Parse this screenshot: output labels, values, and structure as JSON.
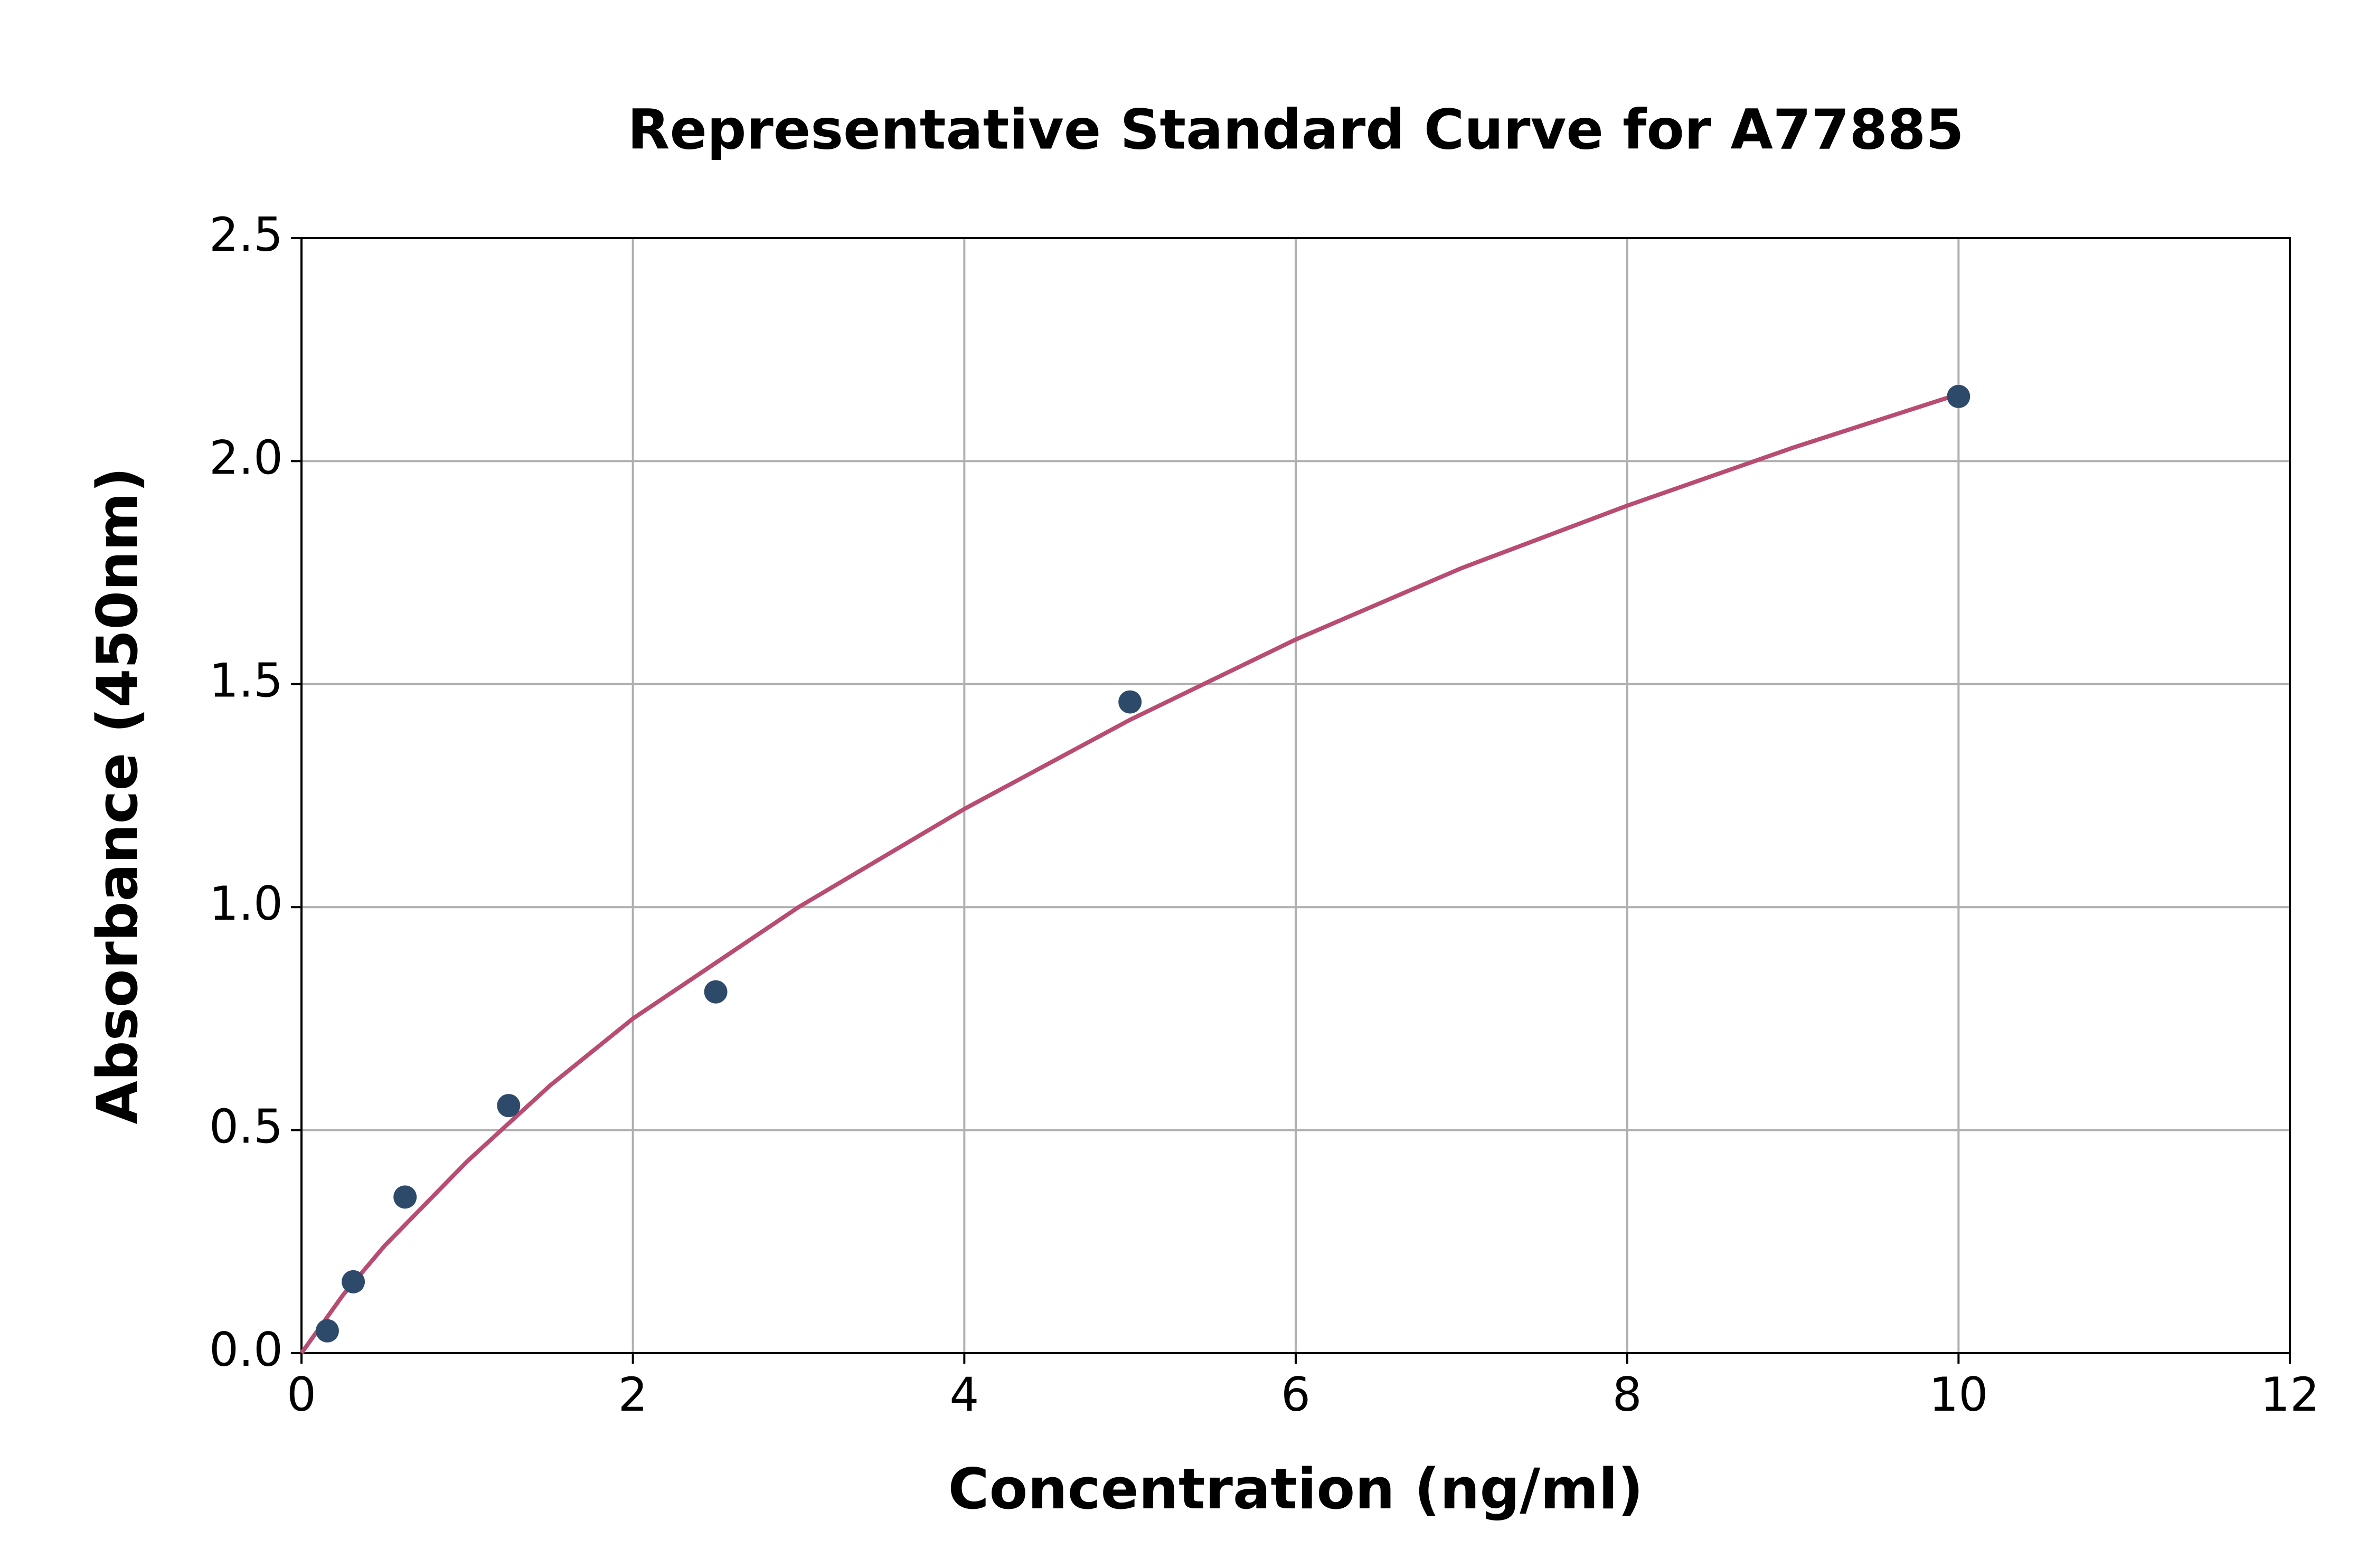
{
  "chart_data": {
    "type": "scatter",
    "title": "Representative Standard Curve for A77885",
    "x_label": "Concentration (ng/ml)",
    "y_label": "Absorbance (450nm)",
    "xlim": [
      0,
      12
    ],
    "xticks": [
      0,
      2,
      4,
      6,
      8,
      10,
      12
    ],
    "ylim": [
      0,
      2.5
    ],
    "yticks": [
      {
        "value": 0,
        "label": "0.0"
      },
      {
        "value": 0.5,
        "label": "0.5"
      },
      {
        "value": 1,
        "label": "1.0"
      },
      {
        "value": 1.5,
        "label": "1.5"
      },
      {
        "value": 2,
        "label": "2.0"
      },
      {
        "value": 2.5,
        "label": "2.5"
      }
    ],
    "grid": true,
    "series": [
      {
        "type": "scatter",
        "color": "#2e4a6b",
        "x": [
          0.156,
          0.3125,
          0.625,
          1.25,
          2.5,
          5,
          10
        ],
        "values": [
          0.05,
          0.16,
          0.35,
          0.555,
          0.81,
          1.46,
          2.145
        ]
      },
      {
        "type": "line",
        "color": "#b84c72",
        "x": [
          0,
          0.25,
          0.5,
          1,
          1.5,
          2,
          3,
          4,
          5,
          6,
          7,
          8,
          9,
          10
        ],
        "values": [
          0,
          0.13,
          0.24,
          0.43,
          0.6,
          0.75,
          1.0,
          1.22,
          1.42,
          1.6,
          1.76,
          1.9,
          2.03,
          2.15
        ]
      }
    ]
  }
}
